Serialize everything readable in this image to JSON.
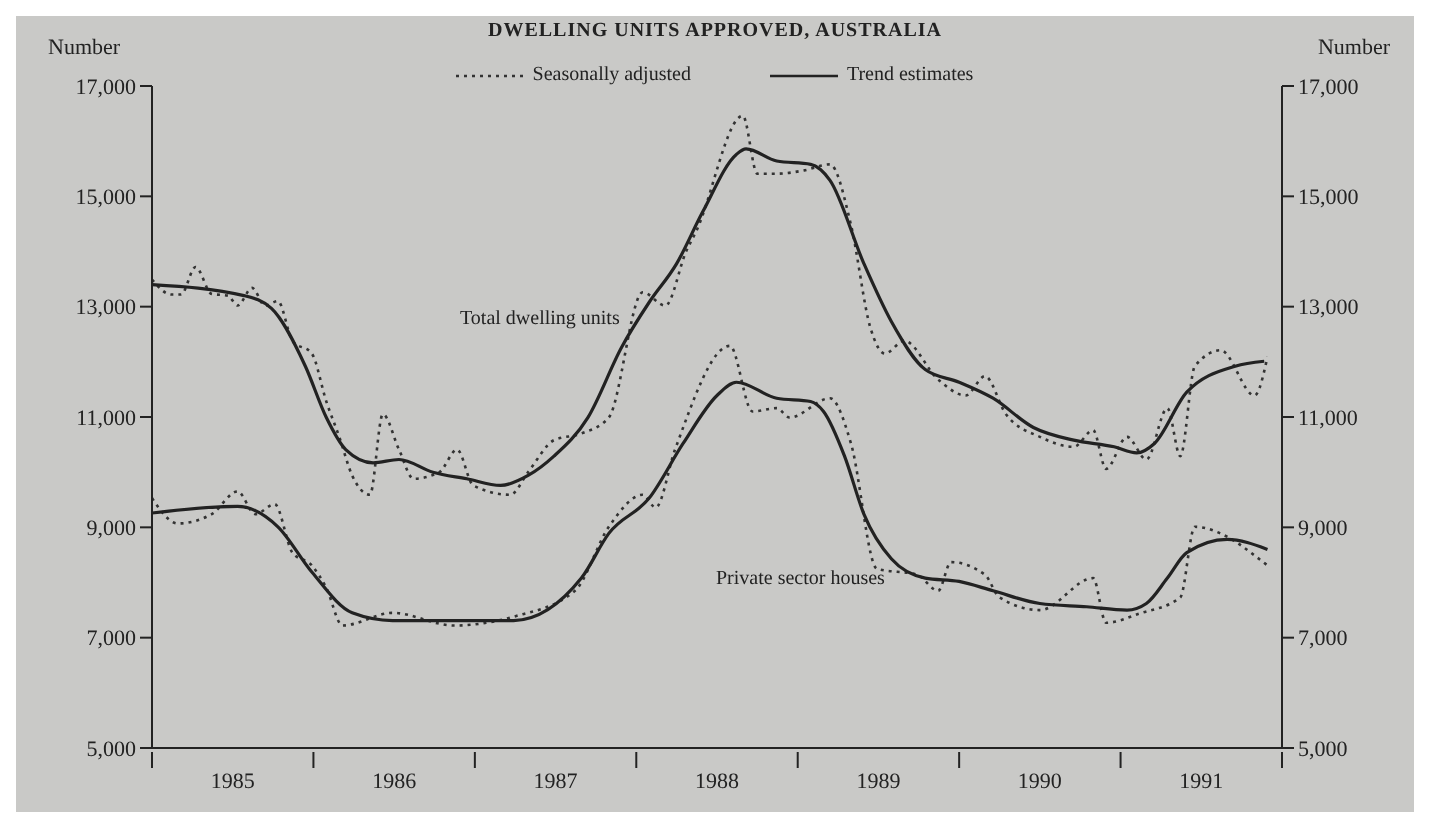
{
  "chart_data": {
    "type": "line",
    "title": "DWELLING UNITS APPROVED, AUSTRALIA",
    "ylabel": "Number",
    "y2label": "Number",
    "xlim": [
      1985,
      1992
    ],
    "xticks": [
      {
        "value": 1985,
        "label": null
      },
      {
        "value": 1985.5,
        "label": "1985"
      },
      {
        "value": 1986,
        "label": null
      },
      {
        "value": 1986.5,
        "label": "1986"
      },
      {
        "value": 1987,
        "label": null
      },
      {
        "value": 1987.5,
        "label": "1987"
      },
      {
        "value": 1988,
        "label": null
      },
      {
        "value": 1988.5,
        "label": "1988"
      },
      {
        "value": 1989,
        "label": null
      },
      {
        "value": 1989.5,
        "label": "1989"
      },
      {
        "value": 1990,
        "label": null
      },
      {
        "value": 1990.5,
        "label": "1990"
      },
      {
        "value": 1991,
        "label": null
      },
      {
        "value": 1991.5,
        "label": "1991"
      },
      {
        "value": 1992,
        "label": null
      }
    ],
    "ylim": [
      5000,
      17000
    ],
    "yticks": [
      {
        "value": 5000,
        "label": "5,000"
      },
      {
        "value": 7000,
        "label": "7,000"
      },
      {
        "value": 9000,
        "label": "9,000"
      },
      {
        "value": 11000,
        "label": "11,000"
      },
      {
        "value": 13000,
        "label": "13,000"
      },
      {
        "value": 15000,
        "label": "15,000"
      },
      {
        "value": 17000,
        "label": "17,000"
      }
    ],
    "y2lim": [
      5000,
      17000
    ],
    "y2ticks": [
      {
        "value": 5000,
        "label": "5,000"
      },
      {
        "value": 7000,
        "label": "7,000"
      },
      {
        "value": 9000,
        "label": "9,000"
      },
      {
        "value": 11000,
        "label": "11,000"
      },
      {
        "value": 13000,
        "label": "13,000"
      },
      {
        "value": 15000,
        "label": "15,000"
      },
      {
        "value": 17000,
        "label": "17,000"
      }
    ],
    "legend": "top",
    "marker": "none",
    "series": [
      {
        "name": "Seasonally adjusted",
        "color": "#333333",
        "line_style": "dotted",
        "x": [
          1985.0,
          1985.12,
          1985.18,
          1985.27,
          1985.37,
          1985.47,
          1985.53,
          1985.62,
          1985.7,
          1985.78,
          1985.87,
          1985.99,
          1986.08,
          1986.16,
          1986.24,
          1986.35,
          1986.43,
          1986.53,
          1986.62,
          1986.78,
          1986.89,
          1986.99,
          1987.22,
          1987.33,
          1987.49,
          1987.66,
          1987.83,
          1988.04,
          1988.18,
          1988.31,
          1988.37,
          1988.66,
          1988.75,
          1988.87,
          1989.04,
          1989.2,
          1989.33,
          1989.45,
          1989.54,
          1989.66,
          1989.87,
          1990.04,
          1990.16,
          1990.29,
          1990.5,
          1990.71,
          1990.83,
          1990.91,
          1991.04,
          1991.16,
          1991.29,
          1991.37,
          1991.46,
          1991.62,
          1991.83,
          1991.91
        ],
        "values": [
          13490,
          13220,
          13220,
          13720,
          13230,
          13200,
          13020,
          13340,
          13020,
          13100,
          12380,
          12150,
          11280,
          10640,
          9940,
          9590,
          11050,
          10410,
          9880,
          10000,
          10410,
          9760,
          9590,
          10000,
          10580,
          10700,
          10990,
          13260,
          13020,
          14010,
          14360,
          16460,
          15410,
          15410,
          15470,
          15580,
          14480,
          12620,
          12150,
          12380,
          11680,
          11390,
          11740,
          11050,
          10640,
          10460,
          10760,
          10060,
          10640,
          10230,
          11160,
          10290,
          11920,
          12210,
          11390,
          12090
        ]
      },
      {
        "name": "Trend estimates",
        "color": "#222222",
        "line_style": "solid",
        "x": [
          1985.0,
          1985.57,
          1985.74,
          1985.95,
          1986.08,
          1986.2,
          1986.37,
          1986.53,
          1986.74,
          1986.95,
          1987.16,
          1987.33,
          1987.49,
          1987.7,
          1987.91,
          1988.08,
          1988.25,
          1988.41,
          1988.62,
          1988.68,
          1988.87,
          1989.08,
          1989.2,
          1989.41,
          1989.58,
          1989.79,
          1990.0,
          1990.21,
          1990.46,
          1990.71,
          1990.96,
          1991.1,
          1991.21,
          1991.41,
          1991.71,
          1991.89
        ],
        "values": [
          13400,
          13200,
          12970,
          11920,
          10990,
          10410,
          10170,
          10230,
          10000,
          9880,
          9760,
          9940,
          10290,
          10990,
          12270,
          13080,
          13780,
          14710,
          15760,
          15860,
          15640,
          15580,
          15290,
          13780,
          12730,
          11860,
          11630,
          11340,
          10810,
          10580,
          10460,
          10350,
          10520,
          11450,
          11920,
          12010
        ]
      },
      {
        "color": "#333333",
        "line_style": "dotted",
        "x": [
          1985.0,
          1985.16,
          1985.37,
          1985.53,
          1985.64,
          1985.76,
          1985.87,
          1985.99,
          1986.08,
          1986.18,
          1986.49,
          1986.87,
          1987.24,
          1987.62,
          1987.83,
          1988.04,
          1988.12,
          1988.24,
          1988.58,
          1988.72,
          1988.87,
          1988.95,
          1989.2,
          1989.33,
          1989.49,
          1989.74,
          1989.87,
          1989.95,
          1990.16,
          1990.25,
          1990.5,
          1990.83,
          1990.91,
          1991.12,
          1991.37,
          1991.46,
          1991.66,
          1991.83,
          1991.91
        ],
        "values": [
          9530,
          9070,
          9240,
          9650,
          9240,
          9420,
          8540,
          8310,
          7900,
          7220,
          7450,
          7220,
          7380,
          7850,
          9010,
          9590,
          9360,
          10410,
          12290,
          11100,
          11160,
          10990,
          11340,
          10520,
          8250,
          8140,
          7850,
          8370,
          8140,
          7730,
          7500,
          8080,
          7270,
          7440,
          7730,
          9010,
          8830,
          8490,
          8310
        ]
      },
      {
        "color": "#222222",
        "line_style": "solid",
        "x": [
          1985.0,
          1985.53,
          1985.78,
          1985.99,
          1986.24,
          1986.49,
          1987.24,
          1987.66,
          1987.83,
          1988.08,
          1988.29,
          1988.5,
          1988.62,
          1988.87,
          1989.08,
          1989.16,
          1989.29,
          1989.41,
          1989.58,
          1989.79,
          1990.0,
          1990.21,
          1990.5,
          1990.79,
          1991.04,
          1991.16,
          1991.29,
          1991.41,
          1991.66,
          1991.91
        ],
        "values": [
          9260,
          9380,
          9010,
          8190,
          7450,
          7310,
          7310,
          8080,
          8890,
          9530,
          10520,
          11390,
          11630,
          11340,
          11280,
          11100,
          10290,
          9240,
          8430,
          8080,
          8020,
          7850,
          7620,
          7560,
          7500,
          7620,
          8080,
          8540,
          8780,
          8600
        ]
      }
    ],
    "annotations": [
      "Total dwelling units",
      "Private sector houses"
    ]
  }
}
